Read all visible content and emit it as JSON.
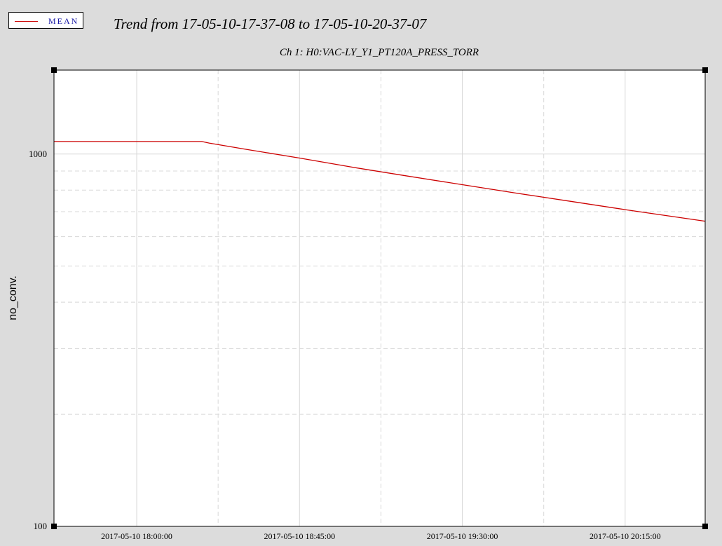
{
  "legend": {
    "label": "MEAN",
    "color": "#cc0000"
  },
  "title": "Trend from 17-05-10-17-37-08 to 17-05-10-20-37-07",
  "subtitle": "Ch 1: H0:VAC-LY_Y1_PT120A_PRESS_TORR",
  "chart_data": {
    "type": "line",
    "title": "Trend from 17-05-10-17-37-08 to 17-05-10-20-37-07",
    "subtitle": "Ch 1: H0:VAC-LY_Y1_PT120A_PRESS_TORR",
    "xlabel": "",
    "ylabel": "no_conv.",
    "yscale": "log",
    "xlim": [
      "2017-05-10 17:37:08",
      "2017-05-10 20:37:07"
    ],
    "ylim": [
      100,
      1680
    ],
    "yticks": [
      {
        "label": "1000",
        "value": 1000
      },
      {
        "label": "100",
        "value": 100
      }
    ],
    "xticks": [
      {
        "label": "2017-05-10 18:00:00",
        "value": "2017-05-10 18:00:00"
      },
      {
        "label": "2017-05-10 18:45:00",
        "value": "2017-05-10 18:45:00"
      },
      {
        "label": "2017-05-10 19:30:00",
        "value": "2017-05-10 19:30:00"
      },
      {
        "label": "2017-05-10 20:15:00",
        "value": "2017-05-10 20:15:00"
      }
    ],
    "grid": true,
    "series": [
      {
        "name": "MEAN",
        "color": "#cc0000",
        "points": [
          {
            "x": "2017-05-10 17:37:08",
            "y": 1080
          },
          {
            "x": "2017-05-10 18:00:00",
            "y": 1080
          },
          {
            "x": "2017-05-10 18:18:00",
            "y": 1080
          },
          {
            "x": "2017-05-10 18:20:00",
            "y": 1070
          },
          {
            "x": "2017-05-10 18:30:00",
            "y": 1030
          },
          {
            "x": "2017-05-10 18:45:00",
            "y": 975
          },
          {
            "x": "2017-05-10 19:00:00",
            "y": 920
          },
          {
            "x": "2017-05-10 19:15:00",
            "y": 872
          },
          {
            "x": "2017-05-10 19:30:00",
            "y": 827
          },
          {
            "x": "2017-05-10 19:45:00",
            "y": 785
          },
          {
            "x": "2017-05-10 20:00:00",
            "y": 746
          },
          {
            "x": "2017-05-10 20:15:00",
            "y": 709
          },
          {
            "x": "2017-05-10 20:37:07",
            "y": 660
          }
        ]
      }
    ]
  }
}
